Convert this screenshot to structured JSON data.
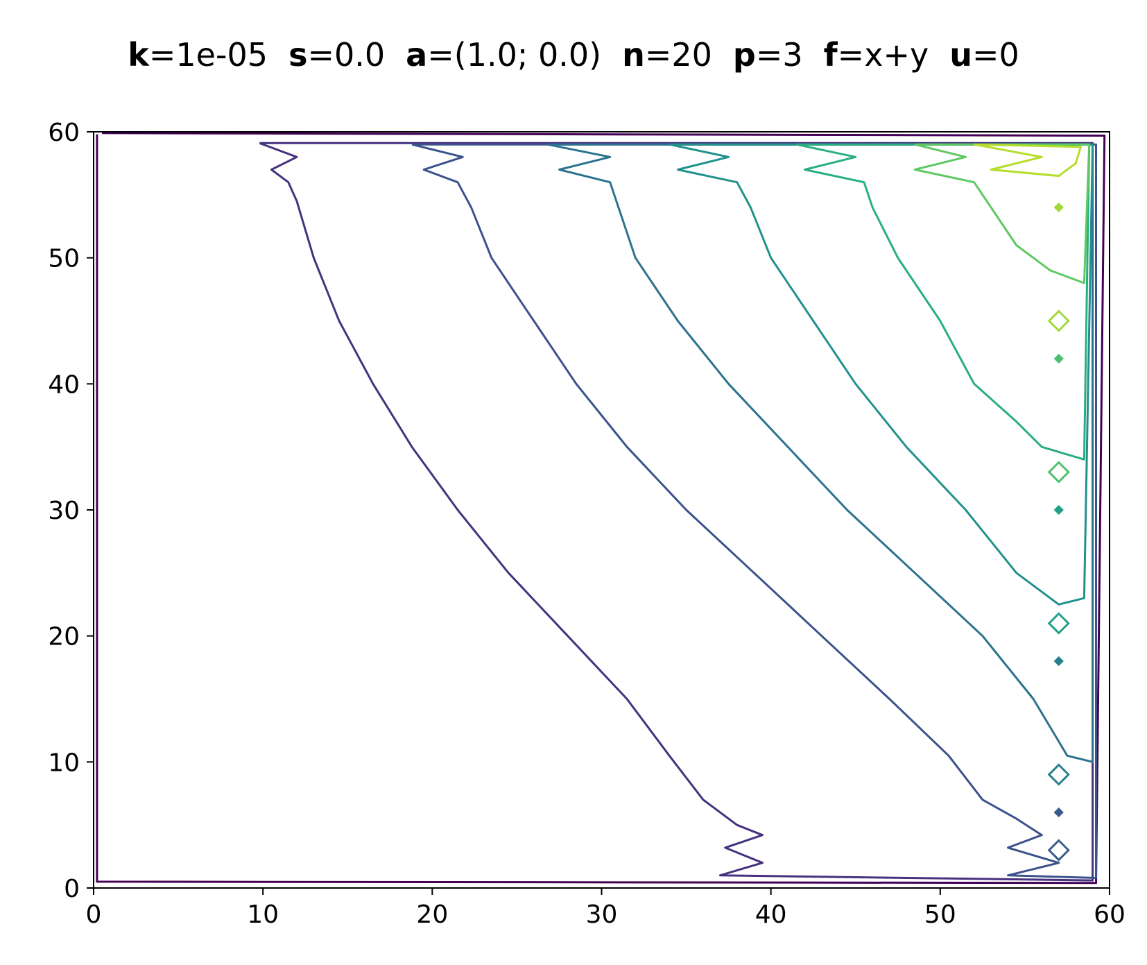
{
  "title_parts": [
    {
      "key": "k",
      "value": "=1e-05"
    },
    {
      "key": "s",
      "value": "=0.0"
    },
    {
      "key": "a",
      "value": "=(1.0; 0.0)"
    },
    {
      "key": "n",
      "value": "=20"
    },
    {
      "key": "p",
      "value": "=3"
    },
    {
      "key": "f",
      "value": "=x+y"
    },
    {
      "key": "u",
      "value": "=0"
    }
  ],
  "chart_data": {
    "type": "contour",
    "title": "k=1e-05   s=0.0   a=(1.0; 0.0)  n=20  p=3  f=x+y   u=0",
    "xlabel": "",
    "ylabel": "",
    "xlim": [
      0,
      60
    ],
    "ylim": [
      0,
      60
    ],
    "xticks": [
      0,
      10,
      20,
      30,
      40,
      50,
      60
    ],
    "yticks": [
      0,
      10,
      20,
      30,
      40,
      50,
      60
    ],
    "grid": false,
    "colormap": "viridis",
    "colors": [
      "#440154",
      "#46327e",
      "#365c8d",
      "#277f8e",
      "#1fa187",
      "#4ac16d",
      "#a0da39",
      "#fde725"
    ],
    "contours": [
      {
        "level_index": 0,
        "color": "#440154",
        "points": [
          [
            0.2,
            59.8
          ],
          [
            0.2,
            0.5
          ],
          [
            59.2,
            0.4
          ],
          [
            59.7,
            59.7
          ],
          [
            0.5,
            59.9
          ]
        ]
      },
      {
        "level_index": 1,
        "color": "#46327e",
        "points": [
          [
            9.8,
            59.1
          ],
          [
            12.0,
            58.0
          ],
          [
            10.5,
            57.0
          ],
          [
            11.5,
            56.0
          ],
          [
            12.0,
            54.5
          ],
          [
            13.0,
            50.0
          ],
          [
            14.5,
            45.0
          ],
          [
            16.5,
            40.0
          ],
          [
            18.8,
            35.0
          ],
          [
            21.5,
            30.0
          ],
          [
            24.5,
            25.0
          ],
          [
            28.0,
            20.0
          ],
          [
            31.5,
            15.0
          ],
          [
            34.0,
            10.5
          ],
          [
            36.0,
            7.0
          ],
          [
            38.0,
            5.0
          ],
          [
            39.5,
            4.2
          ],
          [
            37.3,
            3.2
          ],
          [
            39.5,
            2.0
          ],
          [
            37.0,
            1.0
          ],
          [
            59.0,
            0.6
          ],
          [
            59.0,
            59.1
          ],
          [
            9.8,
            59.1
          ]
        ]
      },
      {
        "level_index": 2,
        "color": "#3b528b",
        "points": [
          [
            18.8,
            59.0
          ],
          [
            21.8,
            58.0
          ],
          [
            19.5,
            57.0
          ],
          [
            21.5,
            56.0
          ],
          [
            22.3,
            54.0
          ],
          [
            23.5,
            50.0
          ],
          [
            26.0,
            45.0
          ],
          [
            28.5,
            40.0
          ],
          [
            31.5,
            35.0
          ],
          [
            35.0,
            30.0
          ],
          [
            39.0,
            25.0
          ],
          [
            43.0,
            20.0
          ],
          [
            47.0,
            15.0
          ],
          [
            50.5,
            10.5
          ],
          [
            52.5,
            7.0
          ],
          [
            54.5,
            5.5
          ],
          [
            56.0,
            4.2
          ],
          [
            54.0,
            3.2
          ],
          [
            57.0,
            2.0
          ],
          [
            54.0,
            1.0
          ],
          [
            59.2,
            0.8
          ],
          [
            59.2,
            59.0
          ],
          [
            18.8,
            59.0
          ]
        ]
      },
      {
        "level_index": 3,
        "color": "#2c728e",
        "points": [
          [
            26.8,
            59.0
          ],
          [
            30.5,
            58.0
          ],
          [
            27.5,
            57.0
          ],
          [
            30.5,
            56.0
          ],
          [
            31.0,
            54.0
          ],
          [
            32.0,
            50.0
          ],
          [
            34.5,
            45.0
          ],
          [
            37.5,
            40.0
          ],
          [
            41.0,
            35.0
          ],
          [
            44.5,
            30.0
          ],
          [
            48.5,
            25.0
          ],
          [
            52.5,
            20.0
          ],
          [
            55.5,
            15.0
          ],
          [
            57.5,
            10.5
          ],
          [
            59.0,
            10.0
          ],
          [
            59.0,
            59.0
          ],
          [
            26.8,
            59.0
          ]
        ]
      },
      {
        "level_index": 4,
        "color": "#21918c",
        "points": [
          [
            34.0,
            59.0
          ],
          [
            37.5,
            58.0
          ],
          [
            34.5,
            57.0
          ],
          [
            38.0,
            56.0
          ],
          [
            38.8,
            54.0
          ],
          [
            40.0,
            50.0
          ],
          [
            42.5,
            45.0
          ],
          [
            45.0,
            40.0
          ],
          [
            48.0,
            35.0
          ],
          [
            51.5,
            30.0
          ],
          [
            54.5,
            25.0
          ],
          [
            57.0,
            22.5
          ],
          [
            58.5,
            23.0
          ],
          [
            59.0,
            59.0
          ],
          [
            34.0,
            59.0
          ]
        ]
      },
      {
        "level_index": 5,
        "color": "#28ae80",
        "points": [
          [
            41.5,
            59.0
          ],
          [
            45.0,
            58.0
          ],
          [
            42.0,
            57.0
          ],
          [
            45.5,
            56.0
          ],
          [
            46.0,
            54.0
          ],
          [
            47.5,
            50.0
          ],
          [
            50.0,
            45.0
          ],
          [
            52.0,
            40.0
          ],
          [
            54.5,
            37.0
          ],
          [
            56.0,
            35.0
          ],
          [
            58.5,
            34.0
          ],
          [
            58.8,
            59.0
          ],
          [
            41.5,
            59.0
          ]
        ]
      },
      {
        "level_index": 6,
        "color": "#5ec962",
        "points": [
          [
            48.5,
            59.0
          ],
          [
            51.5,
            58.0
          ],
          [
            48.5,
            57.0
          ],
          [
            52.0,
            56.0
          ],
          [
            53.0,
            54.0
          ],
          [
            54.5,
            51.0
          ],
          [
            56.5,
            49.0
          ],
          [
            58.5,
            48.0
          ],
          [
            58.8,
            59.0
          ],
          [
            48.5,
            59.0
          ]
        ]
      },
      {
        "level_index": 7,
        "color": "#b5de2b",
        "points": [
          [
            52.0,
            59.0
          ],
          [
            56.0,
            58.0
          ],
          [
            53.0,
            57.0
          ],
          [
            57.0,
            56.5
          ],
          [
            58.0,
            57.5
          ],
          [
            58.3,
            58.8
          ],
          [
            52.0,
            59.0
          ]
        ]
      }
    ],
    "isolated_rings": [
      {
        "x": 57.0,
        "y": 54.0,
        "level_index": 6
      },
      {
        "x": 57.0,
        "y": 45.0,
        "level_index": 6
      },
      {
        "x": 57.0,
        "y": 42.0,
        "level_index": 5
      },
      {
        "x": 57.0,
        "y": 33.0,
        "level_index": 5
      },
      {
        "x": 57.0,
        "y": 30.0,
        "level_index": 4
      },
      {
        "x": 57.0,
        "y": 21.0,
        "level_index": 4
      },
      {
        "x": 57.0,
        "y": 18.0,
        "level_index": 3
      },
      {
        "x": 57.0,
        "y": 9.0,
        "level_index": 3
      },
      {
        "x": 57.0,
        "y": 6.0,
        "level_index": 2
      },
      {
        "x": 57.0,
        "y": 3.0,
        "level_index": 2
      }
    ]
  }
}
